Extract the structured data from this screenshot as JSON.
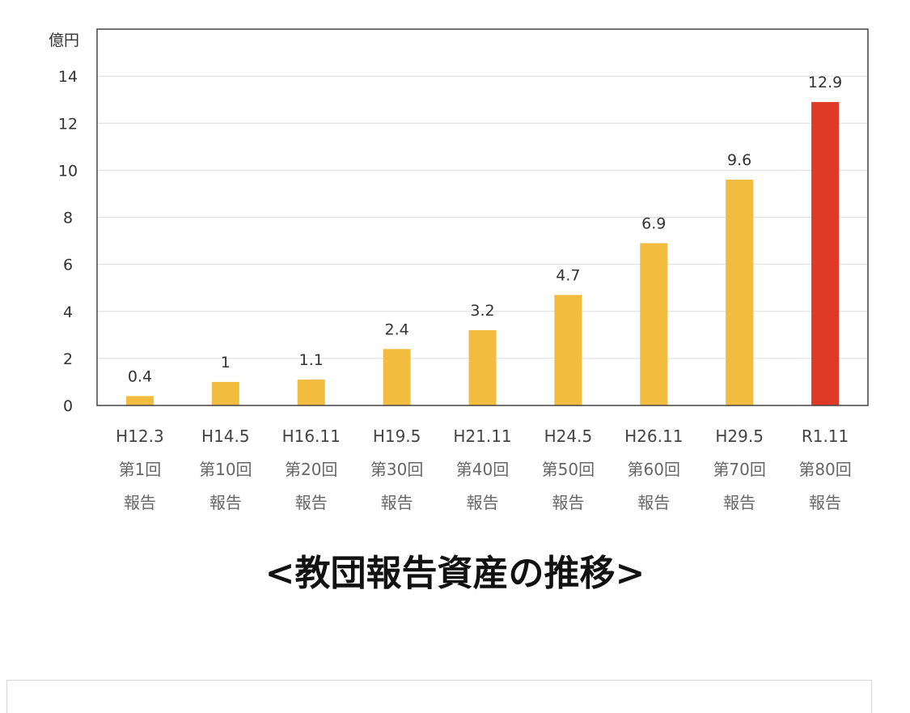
{
  "caption": "<教団報告資産の推移>",
  "chart_data": {
    "type": "bar",
    "ylabel": "億円",
    "ylim": [
      0,
      16
    ],
    "yticks": [
      0,
      2,
      4,
      6,
      8,
      10,
      12,
      14
    ],
    "grid": true,
    "categories": [
      [
        "H12.3",
        "第1回",
        "報告"
      ],
      [
        "H14.5",
        "第10回",
        "報告"
      ],
      [
        "H16.11",
        "第20回",
        "報告"
      ],
      [
        "H19.5",
        "第30回",
        "報告"
      ],
      [
        "H21.11",
        "第40回",
        "報告"
      ],
      [
        "H24.5",
        "第50回",
        "報告"
      ],
      [
        "H26.11",
        "第60回",
        "報告"
      ],
      [
        "H29.5",
        "第70回",
        "報告"
      ],
      [
        "R1.11",
        "第80回",
        "報告"
      ]
    ],
    "values": [
      0.4,
      1,
      1.1,
      2.4,
      3.2,
      4.7,
      6.9,
      9.6,
      12.9
    ],
    "data_labels": [
      "0.4",
      "1",
      "1.1",
      "2.4",
      "3.2",
      "4.7",
      "6.9",
      "9.6",
      "12.9"
    ],
    "colors": [
      "#f2bd3f",
      "#f2bd3f",
      "#f2bd3f",
      "#f2bd3f",
      "#f2bd3f",
      "#f2bd3f",
      "#f2bd3f",
      "#f2bd3f",
      "#de3a26"
    ],
    "gridline_color": "#dddddd",
    "axis_color": "#444444"
  }
}
